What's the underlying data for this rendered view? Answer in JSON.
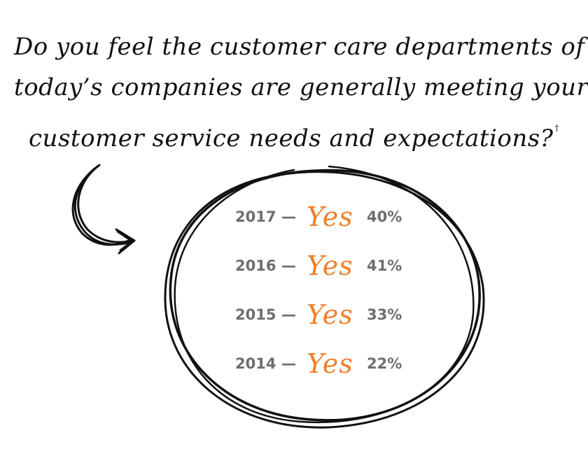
{
  "question": {
    "lines": [
      "Do you feel the customer care departments of",
      "today’s companies are generally meeting your",
      "customer service needs and expectations?"
    ],
    "footnote_mark": "†"
  },
  "results": [
    {
      "year": "2017",
      "dash": "—",
      "answer": "Yes",
      "percent": "40%"
    },
    {
      "year": "2016",
      "dash": "—",
      "answer": "Yes",
      "percent": "41%"
    },
    {
      "year": "2015",
      "dash": "—",
      "answer": "Yes",
      "percent": "33%"
    },
    {
      "year": "2014",
      "dash": "—",
      "answer": "Yes",
      "percent": "22%"
    }
  ],
  "colors": {
    "question_text": "#111111",
    "stat_text": "#6d6e71",
    "answer_accent": "#f07f2a",
    "doodle_stroke": "#111111"
  },
  "icons": [
    "curved-arrow-icon",
    "hand-drawn-circle-icon"
  ]
}
